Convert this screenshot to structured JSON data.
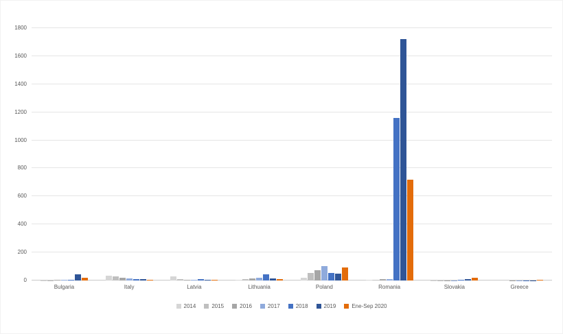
{
  "chart_data": {
    "type": "bar",
    "title": "",
    "xlabel": "",
    "ylabel": "",
    "grid": true,
    "legend_position": "bottom",
    "ylim": [
      0,
      1800
    ],
    "ytick_step": 200,
    "categories": [
      "Bulgaria",
      "Italy",
      "Latvia",
      "Lithuania",
      "Poland",
      "Romania",
      "Slovakia",
      "Greece"
    ],
    "series": [
      {
        "name": "2014",
        "color": "#d6d6d6",
        "values": [
          2,
          35,
          28,
          6,
          20,
          4,
          1,
          0
        ]
      },
      {
        "name": "2015",
        "color": "#bfbfbf",
        "values": [
          2,
          27,
          10,
          10,
          55,
          6,
          1,
          0
        ]
      },
      {
        "name": "2016",
        "color": "#a6a6a6",
        "values": [
          3,
          18,
          6,
          14,
          75,
          8,
          1,
          1
        ]
      },
      {
        "name": "2017",
        "color": "#8faadc",
        "values": [
          4,
          15,
          5,
          20,
          105,
          12,
          2,
          1
        ]
      },
      {
        "name": "2018",
        "color": "#4472c4",
        "values": [
          6,
          12,
          12,
          45,
          55,
          1160,
          3,
          1
        ]
      },
      {
        "name": "2019",
        "color": "#2f5597",
        "values": [
          45,
          8,
          5,
          15,
          50,
          1720,
          10,
          2
        ]
      },
      {
        "name": "Ene-Sep 2020",
        "color": "#e36c0a",
        "values": [
          20,
          5,
          3,
          8,
          95,
          720,
          18,
          4
        ]
      }
    ]
  },
  "colors": {
    "gridline": "#e5e5e5",
    "axis_line": "#c8c8c8",
    "text": "#595959",
    "background": "#ffffff"
  }
}
